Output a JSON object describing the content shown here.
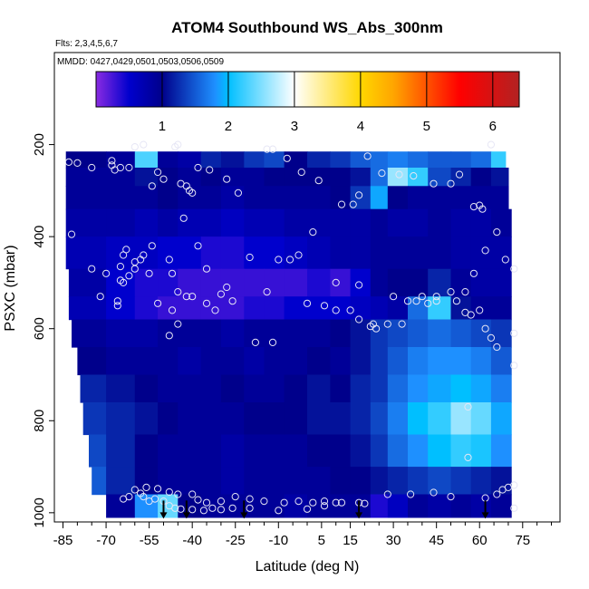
{
  "chart_data": {
    "type": "heatmap",
    "title": "ATOM4 Southbound WS_Abs_300nm",
    "subtitle_flights": "Flts: 2,3,4,5,6,7",
    "subtitle_dates": "MMDD: 0427,0429,0501,0503,0506,0509",
    "xlabel": "Latitude (deg N)",
    "ylabel": "PSXC (mbar)",
    "xlim": [
      -88,
      88
    ],
    "ylim": [
      1020,
      0
    ],
    "x_ticks": [
      -85,
      -70,
      -55,
      -40,
      -25,
      -10,
      5,
      15,
      30,
      45,
      60,
      75
    ],
    "x_tick_labels": [
      "-85",
      "-70",
      "-55",
      "-40",
      "-25",
      "-10",
      "5",
      "15",
      "30",
      "45",
      "60",
      "75"
    ],
    "y_ticks": [
      200,
      400,
      600,
      800,
      1000
    ],
    "y_tick_labels": [
      "200",
      "400",
      "600",
      "800",
      "1000"
    ],
    "colorbar": {
      "min": 0,
      "max": 6.4,
      "ticks": [
        1,
        2,
        3,
        4,
        5,
        6
      ],
      "tick_labels": [
        "1",
        "2",
        "3",
        "4",
        "5",
        "6"
      ],
      "colors": [
        "#8a2be2",
        "#0000cd",
        "#00008b",
        "#1e90ff",
        "#00bfff",
        "#ffffff",
        "#ffd700",
        "#ffa500",
        "#ff0000",
        "#b22222"
      ],
      "stops": [
        0,
        0.5,
        1.0,
        1.8,
        2.0,
        3.0,
        4.0,
        4.5,
        5.5,
        6.4
      ]
    },
    "field": {
      "x_edges": [
        -84,
        -70,
        -60,
        -52,
        -45,
        -37,
        -30,
        -22,
        -15,
        -8,
        0,
        8,
        15,
        22,
        28,
        35,
        42,
        50,
        57,
        64,
        71
      ],
      "bands": [
        {
          "p": [
            215,
            250
          ],
          "x0": -84,
          "x1": 69,
          "v": [
            1.0,
            0.9,
            2.3,
            0.9,
            0.8,
            1.2,
            1.1,
            1.3,
            1.4,
            1.0,
            1.2,
            1.3,
            1.5,
            1.6,
            1.7,
            1.6,
            1.5,
            1.5,
            1.6,
            2.2
          ]
        },
        {
          "p": [
            250,
            290
          ],
          "x0": -84,
          "x1": 70,
          "v": [
            0.9,
            0.9,
            1.1,
            1.0,
            0.9,
            1.0,
            0.9,
            0.9,
            1.0,
            1.0,
            1.0,
            1.0,
            1.1,
            1.6,
            2.6,
            2.2,
            1.4,
            1.2,
            1.0,
            1.1
          ]
        },
        {
          "p": [
            290,
            340
          ],
          "x0": -85,
          "x1": 70,
          "v": [
            0.9,
            0.9,
            0.9,
            1.0,
            0.9,
            0.9,
            0.8,
            0.9,
            0.9,
            0.9,
            0.9,
            1.0,
            1.3,
            1.9,
            1.0,
            0.9,
            0.9,
            0.9,
            0.9,
            0.9
          ]
        },
        {
          "p": [
            340,
            400
          ],
          "x0": -86,
          "x1": 72,
          "v": [
            0.8,
            0.8,
            0.7,
            0.8,
            0.7,
            0.7,
            0.6,
            0.7,
            0.7,
            0.8,
            0.8,
            0.8,
            0.8,
            0.9,
            0.8,
            0.8,
            0.9,
            0.8,
            0.8,
            0.9
          ]
        },
        {
          "p": [
            400,
            470
          ],
          "x0": -84,
          "x1": 72,
          "v": [
            0.7,
            0.6,
            0.6,
            0.5,
            0.5,
            0.4,
            0.4,
            0.5,
            0.5,
            0.6,
            0.7,
            0.8,
            0.8,
            0.9,
            0.9,
            0.9,
            0.9,
            0.8,
            0.8,
            0.8
          ]
        },
        {
          "p": [
            470,
            530
          ],
          "x0": -83,
          "x1": 73,
          "v": [
            0.8,
            0.5,
            0.4,
            0.4,
            0.3,
            0.3,
            0.3,
            0.3,
            0.3,
            0.3,
            0.4,
            0.3,
            0.5,
            0.9,
            1.0,
            1.0,
            1.2,
            0.9,
            0.8,
            0.8
          ]
        },
        {
          "p": [
            530,
            580
          ],
          "x0": -83,
          "x1": 73,
          "v": [
            0.7,
            0.5,
            0.4,
            0.3,
            0.3,
            0.3,
            0.3,
            0.4,
            0.4,
            0.5,
            0.5,
            0.5,
            0.6,
            0.7,
            0.8,
            1.6,
            2.2,
            1.1,
            0.9,
            0.9
          ]
        },
        {
          "p": [
            580,
            640
          ],
          "x0": -82,
          "x1": 73,
          "v": [
            0.9,
            0.8,
            0.8,
            0.9,
            0.9,
            0.9,
            0.8,
            0.9,
            0.9,
            0.9,
            0.9,
            1.0,
            1.1,
            1.3,
            1.4,
            1.5,
            1.6,
            1.5,
            1.4,
            1.3
          ]
        },
        {
          "p": [
            640,
            700
          ],
          "x0": -80,
          "x1": 73,
          "v": [
            1.0,
            0.9,
            0.9,
            0.9,
            0.8,
            0.9,
            0.9,
            0.8,
            0.9,
            0.9,
            1.0,
            0.9,
            1.1,
            1.3,
            1.5,
            1.7,
            1.8,
            1.8,
            1.7,
            1.5
          ]
        },
        {
          "p": [
            700,
            760
          ],
          "x0": -79,
          "x1": 73,
          "v": [
            1.2,
            1.1,
            1.0,
            0.9,
            0.9,
            0.9,
            1.0,
            0.9,
            0.9,
            1.0,
            1.1,
            1.0,
            1.2,
            1.3,
            1.6,
            1.8,
            1.9,
            2.0,
            1.9,
            1.7
          ]
        },
        {
          "p": [
            760,
            830
          ],
          "x0": -78,
          "x1": 73,
          "v": [
            1.3,
            1.2,
            1.1,
            1.0,
            0.9,
            0.9,
            0.9,
            1.0,
            1.0,
            1.0,
            1.1,
            1.1,
            1.2,
            1.4,
            1.7,
            2.0,
            2.2,
            2.6,
            2.4,
            1.9
          ]
        },
        {
          "p": [
            830,
            900
          ],
          "x0": -76,
          "x1": 73,
          "v": [
            1.4,
            1.2,
            1.0,
            0.9,
            0.9,
            0.9,
            0.8,
            0.9,
            0.9,
            0.9,
            1.0,
            1.0,
            1.1,
            1.3,
            1.6,
            1.8,
            2.0,
            2.2,
            2.1,
            1.8
          ]
        },
        {
          "p": [
            900,
            960
          ],
          "x0": -75,
          "x1": 72,
          "v": [
            1.5,
            1.2,
            1.0,
            0.9,
            0.9,
            0.9,
            0.8,
            0.9,
            0.9,
            0.9,
            0.9,
            1.0,
            1.0,
            1.1,
            1.2,
            1.3,
            1.4,
            1.3,
            1.2,
            1.1
          ]
        },
        {
          "p": [
            960,
            1010
          ],
          "x0": -70,
          "x1": 72,
          "v": [
            0.9,
            0.9,
            1.8,
            2.4,
            1.0,
            0.9,
            0.9,
            0.9,
            0.9,
            0.8,
            0.9,
            0.9,
            0.9,
            0.4,
            0.6,
            0.9,
            0.8,
            0.9,
            0.8,
            0.9
          ]
        }
      ]
    },
    "observations": [
      [
        -83,
        238
      ],
      [
        -80,
        240
      ],
      [
        -75,
        250
      ],
      [
        -68,
        235
      ],
      [
        -68,
        245
      ],
      [
        -67,
        255
      ],
      [
        -65,
        250
      ],
      [
        -62,
        250
      ],
      [
        -60,
        205
      ],
      [
        -57,
        200
      ],
      [
        -54,
        290
      ],
      [
        -52,
        260
      ],
      [
        -50,
        275
      ],
      [
        -46,
        205
      ],
      [
        -45,
        200
      ],
      [
        -44,
        285
      ],
      [
        -42,
        290
      ],
      [
        -41,
        300
      ],
      [
        -38,
        250
      ],
      [
        -34,
        255
      ],
      [
        -28,
        275
      ],
      [
        -24,
        305
      ],
      [
        -14,
        210
      ],
      [
        -12,
        210
      ],
      [
        -7,
        230
      ],
      [
        -2,
        260
      ],
      [
        4,
        278
      ],
      [
        12,
        330
      ],
      [
        16,
        330
      ],
      [
        18,
        310
      ],
      [
        21,
        225
      ],
      [
        26,
        262
      ],
      [
        32,
        265
      ],
      [
        37,
        268
      ],
      [
        44,
        285
      ],
      [
        50,
        285
      ],
      [
        53,
        265
      ],
      [
        58,
        335
      ],
      [
        60,
        332
      ],
      [
        61,
        340
      ],
      [
        64,
        200
      ],
      [
        -75,
        470
      ],
      [
        -72,
        530
      ],
      [
        -66,
        540
      ],
      [
        -64,
        500
      ],
      [
        -62,
        485
      ],
      [
        -60,
        455
      ],
      [
        -58,
        450
      ],
      [
        -54,
        420
      ],
      [
        -48,
        450
      ],
      [
        -47,
        480
      ],
      [
        -45,
        520
      ],
      [
        -42,
        530
      ],
      [
        -43,
        360
      ],
      [
        -40,
        305
      ],
      [
        -38,
        420
      ],
      [
        -35,
        470
      ],
      [
        -30,
        525
      ],
      [
        -28,
        510
      ],
      [
        -20,
        445
      ],
      [
        -14,
        520
      ],
      [
        -10,
        450
      ],
      [
        -6,
        450
      ],
      [
        -3,
        440
      ],
      [
        2,
        390
      ],
      [
        6,
        550
      ],
      [
        10,
        500
      ],
      [
        15,
        560
      ],
      [
        18,
        505
      ],
      [
        23,
        590
      ],
      [
        28,
        590
      ],
      [
        33,
        590
      ],
      [
        38,
        540
      ],
      [
        40,
        530
      ],
      [
        45,
        530
      ],
      [
        50,
        520
      ],
      [
        55,
        520
      ],
      [
        58,
        480
      ],
      [
        62,
        430
      ],
      [
        66,
        390
      ],
      [
        69,
        450
      ],
      [
        72,
        470
      ],
      [
        -82,
        395
      ],
      [
        -70,
        480
      ],
      [
        -66,
        550
      ],
      [
        -65,
        495
      ],
      [
        -65,
        465
      ],
      [
        -64,
        440
      ],
      [
        -63,
        428
      ],
      [
        -60,
        470
      ],
      [
        -57,
        440
      ],
      [
        -55,
        480
      ],
      [
        -52,
        545
      ],
      [
        -47,
        560
      ],
      [
        -48,
        615
      ],
      [
        -45,
        590
      ],
      [
        -40,
        530
      ],
      [
        -35,
        545
      ],
      [
        -32,
        560
      ],
      [
        -26,
        540
      ],
      [
        -18,
        630
      ],
      [
        -12,
        630
      ],
      [
        0,
        545
      ],
      [
        10,
        560
      ],
      [
        18,
        580
      ],
      [
        22,
        595
      ],
      [
        24,
        600
      ],
      [
        30,
        530
      ],
      [
        35,
        540
      ],
      [
        42,
        545
      ],
      [
        45,
        540
      ],
      [
        52,
        540
      ],
      [
        55,
        565
      ],
      [
        57,
        570
      ],
      [
        60,
        560
      ],
      [
        62,
        600
      ],
      [
        64,
        620
      ],
      [
        -57,
        965
      ],
      [
        -55,
        975
      ],
      [
        -53,
        970
      ],
      [
        -50,
        975
      ],
      [
        -48,
        985
      ],
      [
        -46,
        990
      ],
      [
        -44,
        992
      ],
      [
        -40,
        993
      ],
      [
        -36,
        995
      ],
      [
        -33,
        990
      ],
      [
        -30,
        993
      ],
      [
        -26,
        990
      ],
      [
        -20,
        990
      ],
      [
        -10,
        995
      ],
      [
        0,
        992
      ],
      [
        6,
        985
      ],
      [
        12,
        978
      ],
      [
        18,
        978
      ],
      [
        20,
        980
      ],
      [
        28,
        960
      ],
      [
        36,
        960
      ],
      [
        44,
        956
      ],
      [
        50,
        965
      ],
      [
        56,
        770
      ],
      [
        56,
        880
      ],
      [
        62,
        968
      ],
      [
        66,
        960
      ],
      [
        68,
        950
      ],
      [
        70,
        945
      ],
      [
        72,
        940
      ],
      [
        72,
        990
      ],
      [
        72,
        610
      ],
      [
        72,
        680
      ],
      [
        66,
        640
      ],
      [
        -60,
        950
      ],
      [
        -62,
        965
      ],
      [
        -64,
        970
      ],
      [
        -58,
        958
      ],
      [
        -56,
        945
      ],
      [
        -52,
        948
      ],
      [
        -48,
        955
      ],
      [
        -45,
        960
      ],
      [
        -40,
        960
      ],
      [
        -38,
        972
      ],
      [
        -35,
        978
      ],
      [
        -30,
        975
      ],
      [
        -25,
        965
      ],
      [
        -20,
        970
      ],
      [
        -15,
        975
      ],
      [
        -8,
        978
      ],
      [
        -3,
        975
      ],
      [
        2,
        978
      ],
      [
        6,
        975
      ],
      [
        10,
        978
      ]
    ],
    "markers_lat": [
      -50,
      -42,
      -22,
      18,
      62
    ],
    "markers_p": [
      1005,
      1005,
      1005,
      1005,
      1005
    ]
  }
}
